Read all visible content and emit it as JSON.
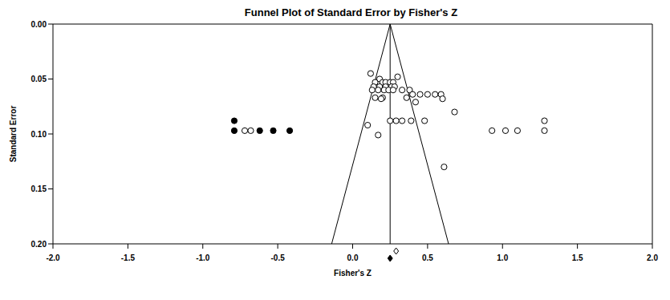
{
  "chart_data": {
    "type": "scatter",
    "title": "Funnel Plot of Standard Error by Fisher's Z",
    "x_label": "Fisher's Z",
    "y_label": "Standard Error",
    "xlim": [
      -2.0,
      2.0
    ],
    "xticks": [
      {
        "value": -2.0,
        "label": "-2.0"
      },
      {
        "value": -1.5,
        "label": "-1.5"
      },
      {
        "value": -1.0,
        "label": "-1.0"
      },
      {
        "value": -0.5,
        "label": "-0.5"
      },
      {
        "value": 0.0,
        "label": "0.0"
      },
      {
        "value": 0.5,
        "label": "0.5"
      },
      {
        "value": 1.0,
        "label": "1.0"
      },
      {
        "value": 1.5,
        "label": "1.5"
      },
      {
        "value": 2.0,
        "label": "2.0"
      }
    ],
    "ylim": [
      0.0,
      0.2
    ],
    "yticks": [
      {
        "value": 0.0,
        "label": "0.00"
      },
      {
        "value": 0.05,
        "label": "0.05"
      },
      {
        "value": 0.1,
        "label": "0.10"
      },
      {
        "value": 0.15,
        "label": "0.15"
      },
      {
        "value": 0.2,
        "label": "0.20"
      }
    ],
    "grid": false,
    "series": [
      {
        "color": "#000000",
        "marker": "open_circle",
        "x": [
          0.12,
          0.18,
          0.15,
          0.2,
          0.22,
          0.25,
          0.27,
          0.14,
          0.18,
          0.22,
          0.26,
          0.28,
          0.13,
          0.17,
          0.21,
          0.24,
          0.27,
          0.3,
          0.33,
          0.38,
          0.4,
          0.45,
          0.5,
          0.55,
          0.59,
          0.6,
          0.36,
          0.42,
          0.15,
          0.2,
          0.19,
          0.68,
          0.25,
          0.29,
          0.33,
          0.39,
          0.48,
          0.1,
          0.17,
          0.61,
          0.93,
          1.02,
          1.1,
          1.28,
          1.28,
          -0.72,
          -0.68
        ],
        "y": [
          0.045,
          0.05,
          0.053,
          0.053,
          0.053,
          0.053,
          0.053,
          0.057,
          0.057,
          0.057,
          0.057,
          0.057,
          0.06,
          0.06,
          0.06,
          0.06,
          0.06,
          0.048,
          0.06,
          0.06,
          0.064,
          0.064,
          0.064,
          0.064,
          0.064,
          0.068,
          0.067,
          0.071,
          0.067,
          0.067,
          0.068,
          0.08,
          0.088,
          0.088,
          0.088,
          0.088,
          0.088,
          0.092,
          0.101,
          0.13,
          0.097,
          0.097,
          0.097,
          0.088,
          0.097,
          0.097,
          0.097
        ]
      },
      {
        "color": "#000000",
        "marker": "filled_circle",
        "x": [
          -0.79,
          -0.79,
          -0.62,
          -0.53,
          -0.42
        ],
        "y": [
          0.088,
          0.097,
          0.097,
          0.097,
          0.097
        ]
      }
    ],
    "funnel_lines": [
      [
        [
          0.25,
          0.0
        ],
        [
          -0.14,
          0.2
        ]
      ],
      [
        [
          0.25,
          0.0
        ],
        [
          0.64,
          0.2
        ]
      ],
      [
        [
          0.25,
          0.0
        ],
        [
          0.25,
          0.2
        ]
      ]
    ],
    "summary": [
      {
        "x": 0.29,
        "marker": "open_diamond",
        "color": "#000000"
      },
      {
        "x": 0.25,
        "marker": "filled_diamond",
        "color": "#000000"
      }
    ]
  }
}
